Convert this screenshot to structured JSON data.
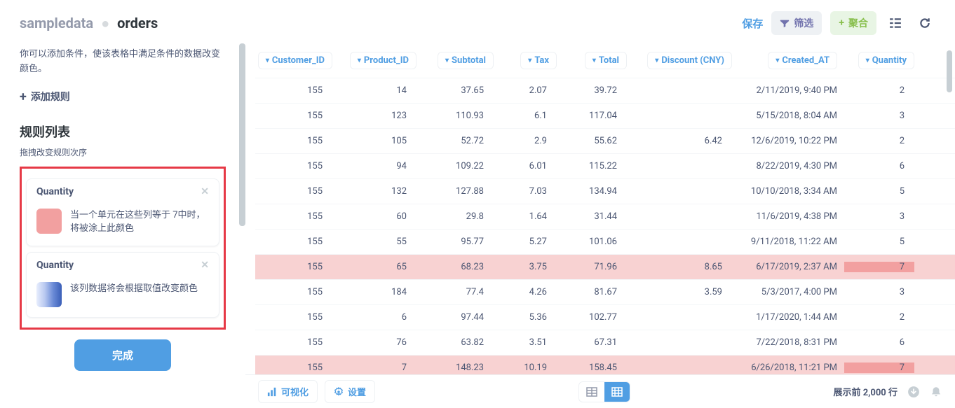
{
  "breadcrumb": {
    "db": "sampledata",
    "table": "orders"
  },
  "header": {
    "save": "保存",
    "filter": "筛选",
    "aggregate": "聚合"
  },
  "sidebar": {
    "description": "你可以添加条件，使该表格中满足条件的数据改变颜色。",
    "add_rule": "添加规则",
    "rules_title": "规则列表",
    "rules_hint": "拖拽改变规则次序",
    "rules": [
      {
        "field": "Quantity",
        "desc": "当一个单元在这些列等于 7中时，将被涂上此颜色"
      },
      {
        "field": "Quantity",
        "desc": "该列数据将会根据取值改变颜色"
      }
    ],
    "done": "完成"
  },
  "columns": [
    "Customer_ID",
    "Product_ID",
    "Subtotal",
    "Tax",
    "Total",
    "Discount (CNY)",
    "Created_AT",
    "Quantity"
  ],
  "rows": [
    {
      "customer_id": "155",
      "product_id": "14",
      "subtotal": "37.65",
      "tax": "2.07",
      "total": "39.72",
      "discount": "",
      "created_at": "2/11/2019, 9:40 PM",
      "quantity": "2",
      "hl": false
    },
    {
      "customer_id": "155",
      "product_id": "123",
      "subtotal": "110.93",
      "tax": "6.1",
      "total": "117.04",
      "discount": "",
      "created_at": "5/15/2018, 8:04 AM",
      "quantity": "3",
      "hl": false
    },
    {
      "customer_id": "155",
      "product_id": "105",
      "subtotal": "52.72",
      "tax": "2.9",
      "total": "55.62",
      "discount": "6.42",
      "created_at": "12/6/2019, 10:22 PM",
      "quantity": "2",
      "hl": false
    },
    {
      "customer_id": "155",
      "product_id": "94",
      "subtotal": "109.22",
      "tax": "6.01",
      "total": "115.22",
      "discount": "",
      "created_at": "8/22/2019, 4:30 PM",
      "quantity": "6",
      "hl": false
    },
    {
      "customer_id": "155",
      "product_id": "132",
      "subtotal": "127.88",
      "tax": "7.03",
      "total": "134.94",
      "discount": "",
      "created_at": "10/10/2018, 3:34 AM",
      "quantity": "5",
      "hl": false
    },
    {
      "customer_id": "155",
      "product_id": "60",
      "subtotal": "29.8",
      "tax": "1.64",
      "total": "31.44",
      "discount": "",
      "created_at": "11/6/2019, 4:38 PM",
      "quantity": "3",
      "hl": false
    },
    {
      "customer_id": "155",
      "product_id": "55",
      "subtotal": "95.77",
      "tax": "5.27",
      "total": "101.06",
      "discount": "",
      "created_at": "9/11/2018, 11:22 AM",
      "quantity": "5",
      "hl": false
    },
    {
      "customer_id": "155",
      "product_id": "65",
      "subtotal": "68.23",
      "tax": "3.75",
      "total": "71.96",
      "discount": "8.65",
      "created_at": "6/17/2019, 2:37 AM",
      "quantity": "7",
      "hl": true
    },
    {
      "customer_id": "155",
      "product_id": "184",
      "subtotal": "77.4",
      "tax": "4.26",
      "total": "81.67",
      "discount": "3.59",
      "created_at": "5/3/2017, 4:00 PM",
      "quantity": "3",
      "hl": false
    },
    {
      "customer_id": "155",
      "product_id": "6",
      "subtotal": "97.44",
      "tax": "5.36",
      "total": "102.77",
      "discount": "",
      "created_at": "1/17/2020, 1:44 AM",
      "quantity": "2",
      "hl": false
    },
    {
      "customer_id": "155",
      "product_id": "76",
      "subtotal": "63.82",
      "tax": "3.51",
      "total": "67.31",
      "discount": "",
      "created_at": "7/22/2018, 8:31 PM",
      "quantity": "6",
      "hl": false
    },
    {
      "customer_id": "155",
      "product_id": "7",
      "subtotal": "148.23",
      "tax": "10.19",
      "total": "158.45",
      "discount": "",
      "created_at": "6/26/2018, 11:21 PM",
      "quantity": "7",
      "hl": true
    }
  ],
  "footer": {
    "viz": "可视化",
    "settings": "设置",
    "rows_label": "展示前 2,000 行"
  },
  "colors": {
    "highlight_row": "#f8d2d2",
    "highlight_cell": "#f2a0a0",
    "primary": "#509ee3"
  }
}
